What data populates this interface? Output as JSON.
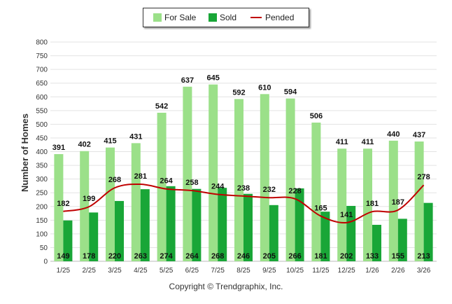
{
  "chart_data": {
    "type": "bar",
    "categories": [
      "1/25",
      "2/25",
      "3/25",
      "4/25",
      "5/25",
      "6/25",
      "7/25",
      "8/25",
      "9/25",
      "10/25",
      "11/25",
      "12/25",
      "1/26",
      "2/26",
      "3/26"
    ],
    "series": [
      {
        "name": "For Sale",
        "type": "bar",
        "color": "#9be089",
        "values": [
          391,
          402,
          415,
          431,
          542,
          637,
          645,
          592,
          610,
          594,
          506,
          411,
          411,
          440,
          437
        ]
      },
      {
        "name": "Sold",
        "type": "bar",
        "color": "#19a637",
        "values": [
          149,
          178,
          220,
          263,
          274,
          264,
          268,
          246,
          205,
          266,
          181,
          202,
          133,
          155,
          213
        ]
      },
      {
        "name": "Pended",
        "type": "line",
        "color": "#c00000",
        "values": [
          182,
          199,
          268,
          281,
          264,
          258,
          244,
          238,
          232,
          228,
          165,
          141,
          181,
          187,
          278
        ]
      }
    ],
    "title": "",
    "xlabel": "",
    "ylabel": "Number of Homes",
    "ylim": [
      0,
      800
    ],
    "yticks": [
      0,
      50,
      100,
      150,
      200,
      250,
      300,
      350,
      400,
      450,
      500,
      550,
      600,
      650,
      700,
      750,
      800
    ],
    "grid": true,
    "legend_position": "top-center"
  },
  "legend": {
    "for_sale": "For Sale",
    "sold": "Sold",
    "pended": "Pended"
  },
  "footer": {
    "copyright": "Copyright © Trendgraphix, Inc."
  }
}
